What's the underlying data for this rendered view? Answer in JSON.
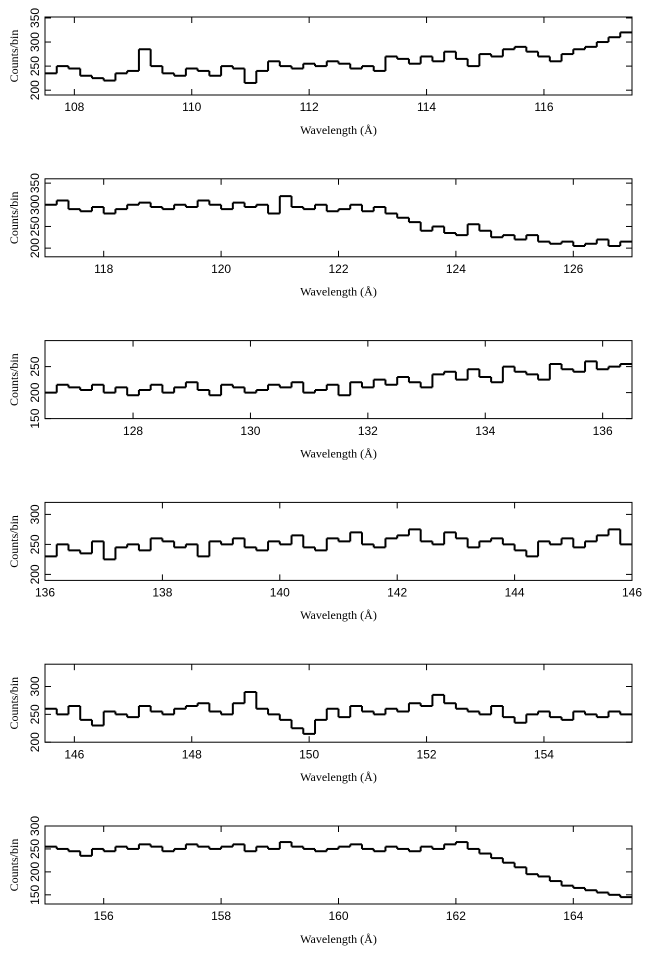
{
  "chart_data": [
    {
      "type": "histogram",
      "xlabel": "Wavelength (Å)",
      "ylabel": "Counts/bin",
      "color": "#000000",
      "bins": [
        107.5,
        107.7,
        107.9,
        108.1,
        108.3,
        108.5,
        108.7,
        108.9,
        109.1,
        109.3,
        109.5,
        109.7,
        109.9,
        110.1,
        110.3,
        110.5,
        110.7,
        110.9,
        111.1,
        111.3,
        111.5,
        111.7,
        111.9,
        112.1,
        112.3,
        112.5,
        112.7,
        112.9,
        113.1,
        113.3,
        113.5,
        113.7,
        113.9,
        114.1,
        114.3,
        114.5,
        114.7,
        114.9,
        115.1,
        115.3,
        115.5,
        115.7,
        115.9,
        116.1,
        116.3,
        116.5,
        116.7,
        116.9,
        117.1,
        117.3,
        117.5
      ],
      "values": [
        235,
        250,
        245,
        230,
        225,
        220,
        235,
        240,
        285,
        250,
        235,
        230,
        245,
        240,
        230,
        250,
        245,
        215,
        240,
        260,
        250,
        245,
        255,
        250,
        260,
        255,
        245,
        250,
        240,
        270,
        265,
        255,
        270,
        260,
        280,
        265,
        250,
        275,
        270,
        285,
        290,
        280,
        270,
        260,
        275,
        285,
        290,
        300,
        310,
        320
      ],
      "xlim": [
        107.5,
        117.5
      ],
      "xticks": [
        108,
        110,
        112,
        114,
        116
      ],
      "ylim": [
        190,
        352
      ],
      "yticks": [
        200,
        250,
        300,
        350
      ]
    },
    {
      "type": "histogram",
      "xlabel": "Wavelength (Å)",
      "ylabel": "Counts/bin",
      "color": "#000000",
      "bins": [
        117.0,
        117.2,
        117.4,
        117.6,
        117.8,
        118.0,
        118.2,
        118.4,
        118.6,
        118.8,
        119.0,
        119.2,
        119.4,
        119.6,
        119.8,
        120.0,
        120.2,
        120.4,
        120.6,
        120.8,
        121.0,
        121.2,
        121.4,
        121.6,
        121.8,
        122.0,
        122.2,
        122.4,
        122.6,
        122.8,
        123.0,
        123.2,
        123.4,
        123.6,
        123.8,
        124.0,
        124.2,
        124.4,
        124.6,
        124.8,
        125.0,
        125.2,
        125.4,
        125.6,
        125.8,
        126.0,
        126.2,
        126.4,
        126.6,
        126.8,
        127.0
      ],
      "values": [
        300,
        310,
        290,
        285,
        295,
        280,
        290,
        300,
        305,
        295,
        290,
        300,
        295,
        310,
        300,
        290,
        305,
        295,
        300,
        280,
        320,
        295,
        290,
        300,
        285,
        290,
        300,
        285,
        295,
        280,
        270,
        260,
        240,
        250,
        235,
        230,
        255,
        240,
        225,
        230,
        220,
        230,
        215,
        210,
        215,
        205,
        210,
        220,
        205,
        215
      ],
      "xlim": [
        117,
        127
      ],
      "xticks": [
        118,
        120,
        122,
        124,
        126
      ],
      "ylim": [
        180,
        360
      ],
      "yticks": [
        200,
        250,
        300,
        350
      ]
    },
    {
      "type": "histogram",
      "xlabel": "Wavelength (Å)",
      "ylabel": "Counts/bin",
      "color": "#000000",
      "bins": [
        126.5,
        126.7,
        126.9,
        127.1,
        127.3,
        127.5,
        127.7,
        127.9,
        128.1,
        128.3,
        128.5,
        128.7,
        128.9,
        129.1,
        129.3,
        129.5,
        129.7,
        129.9,
        130.1,
        130.3,
        130.5,
        130.7,
        130.9,
        131.1,
        131.3,
        131.5,
        131.7,
        131.9,
        132.1,
        132.3,
        132.5,
        132.7,
        132.9,
        133.1,
        133.3,
        133.5,
        133.7,
        133.9,
        134.1,
        134.3,
        134.5,
        134.7,
        134.9,
        135.1,
        135.3,
        135.5,
        135.7,
        135.9,
        136.1,
        136.3,
        136.5
      ],
      "values": [
        200,
        215,
        210,
        205,
        215,
        200,
        210,
        195,
        205,
        215,
        200,
        210,
        220,
        205,
        195,
        215,
        210,
        200,
        205,
        215,
        210,
        220,
        200,
        205,
        215,
        195,
        220,
        210,
        225,
        215,
        230,
        220,
        210,
        235,
        240,
        225,
        245,
        230,
        220,
        250,
        240,
        235,
        225,
        255,
        245,
        240,
        260,
        245,
        250,
        255
      ],
      "xlim": [
        126.5,
        136.5
      ],
      "xticks": [
        128,
        130,
        132,
        134,
        136
      ],
      "ylim": [
        150,
        300
      ],
      "yticks": [
        150,
        200,
        250
      ]
    },
    {
      "type": "histogram",
      "xlabel": "Wavelength (Å)",
      "ylabel": "Counts/bin",
      "color": "#000000",
      "bins": [
        136.0,
        136.2,
        136.4,
        136.6,
        136.8,
        137.0,
        137.2,
        137.4,
        137.6,
        137.8,
        138.0,
        138.2,
        138.4,
        138.6,
        138.8,
        139.0,
        139.2,
        139.4,
        139.6,
        139.8,
        140.0,
        140.2,
        140.4,
        140.6,
        140.8,
        141.0,
        141.2,
        141.4,
        141.6,
        141.8,
        142.0,
        142.2,
        142.4,
        142.6,
        142.8,
        143.0,
        143.2,
        143.4,
        143.6,
        143.8,
        144.0,
        144.2,
        144.4,
        144.6,
        144.8,
        145.0,
        145.2,
        145.4,
        145.6,
        145.8,
        146.0
      ],
      "values": [
        230,
        250,
        240,
        235,
        255,
        225,
        245,
        250,
        240,
        260,
        255,
        245,
        250,
        230,
        255,
        250,
        260,
        245,
        240,
        255,
        250,
        265,
        245,
        240,
        260,
        255,
        270,
        250,
        245,
        260,
        265,
        275,
        255,
        250,
        270,
        260,
        245,
        255,
        260,
        250,
        240,
        230,
        255,
        250,
        260,
        245,
        255,
        265,
        275,
        250
      ],
      "xlim": [
        136,
        146
      ],
      "xticks": [
        136,
        138,
        140,
        142,
        144,
        146
      ],
      "ylim": [
        190,
        320
      ],
      "yticks": [
        200,
        250,
        300
      ]
    },
    {
      "type": "histogram",
      "xlabel": "Wavelength (Å)",
      "ylabel": "Counts/bin",
      "color": "#000000",
      "bins": [
        145.5,
        145.7,
        145.9,
        146.1,
        146.3,
        146.5,
        146.7,
        146.9,
        147.1,
        147.3,
        147.5,
        147.7,
        147.9,
        148.1,
        148.3,
        148.5,
        148.7,
        148.9,
        149.1,
        149.3,
        149.5,
        149.7,
        149.9,
        150.1,
        150.3,
        150.5,
        150.7,
        150.9,
        151.1,
        151.3,
        151.5,
        151.7,
        151.9,
        152.1,
        152.3,
        152.5,
        152.7,
        152.9,
        153.1,
        153.3,
        153.5,
        153.7,
        153.9,
        154.1,
        154.3,
        154.5,
        154.7,
        154.9,
        155.1,
        155.3,
        155.5
      ],
      "values": [
        260,
        250,
        265,
        240,
        230,
        255,
        250,
        245,
        265,
        255,
        250,
        260,
        265,
        270,
        255,
        250,
        270,
        290,
        260,
        250,
        240,
        225,
        215,
        240,
        260,
        245,
        265,
        255,
        250,
        260,
        255,
        270,
        265,
        285,
        270,
        260,
        255,
        250,
        265,
        245,
        235,
        250,
        255,
        245,
        240,
        255,
        250,
        245,
        255,
        250
      ],
      "xlim": [
        145.5,
        155.5
      ],
      "xticks": [
        146,
        148,
        150,
        152,
        154
      ],
      "ylim": [
        200,
        340
      ],
      "yticks": [
        200,
        250,
        300
      ]
    },
    {
      "type": "histogram",
      "xlabel": "Wavelength (Å)",
      "ylabel": "Counts/bin",
      "color": "#000000",
      "bins": [
        155.0,
        155.2,
        155.4,
        155.6,
        155.8,
        156.0,
        156.2,
        156.4,
        156.6,
        156.8,
        157.0,
        157.2,
        157.4,
        157.6,
        157.8,
        158.0,
        158.2,
        158.4,
        158.6,
        158.8,
        159.0,
        159.2,
        159.4,
        159.6,
        159.8,
        160.0,
        160.2,
        160.4,
        160.6,
        160.8,
        161.0,
        161.2,
        161.4,
        161.6,
        161.8,
        162.0,
        162.2,
        162.4,
        162.6,
        162.8,
        163.0,
        163.2,
        163.4,
        163.6,
        163.8,
        164.0,
        164.2,
        164.4,
        164.6,
        164.8,
        165.0
      ],
      "values": [
        255,
        250,
        245,
        235,
        250,
        245,
        255,
        250,
        260,
        255,
        245,
        250,
        260,
        255,
        250,
        255,
        260,
        245,
        255,
        250,
        265,
        255,
        250,
        245,
        250,
        255,
        260,
        250,
        245,
        255,
        250,
        245,
        255,
        250,
        260,
        265,
        250,
        240,
        230,
        220,
        210,
        195,
        190,
        180,
        170,
        165,
        160,
        155,
        150,
        145
      ],
      "xlim": [
        155,
        165
      ],
      "xticks": [
        156,
        158,
        160,
        162,
        164
      ],
      "ylim": [
        130,
        300
      ],
      "yticks": [
        150,
        200,
        250,
        300
      ]
    }
  ]
}
